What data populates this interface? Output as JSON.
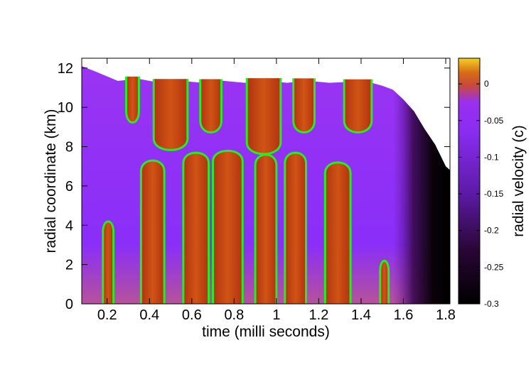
{
  "chart_data": {
    "type": "heatmap",
    "title": "",
    "xlabel": "time   (milli seconds)",
    "ylabel": "radial coordinate   (km)",
    "xlim": [
      0.08,
      1.82
    ],
    "ylim": [
      0,
      12.5
    ],
    "x_ticks": [
      "0.2",
      "0.4",
      "0.6",
      "0.8",
      "1",
      "1.2",
      "1.4",
      "1.6",
      "1.8"
    ],
    "x_tick_values": [
      0.2,
      0.4,
      0.6,
      0.8,
      1.0,
      1.2,
      1.4,
      1.6,
      1.8
    ],
    "y_ticks": [
      "0",
      "2",
      "4",
      "6",
      "8",
      "10",
      "12"
    ],
    "y_tick_values": [
      0,
      2,
      4,
      6,
      8,
      10,
      12
    ],
    "colorbar": {
      "label": "radial velocity   (c)",
      "range": [
        -0.3,
        0.035
      ],
      "ticks": [
        "0",
        "-0.05",
        "-0.1",
        "-0.15",
        "-0.2",
        "-0.25",
        "-0.3"
      ],
      "tick_values": [
        0,
        -0.05,
        -0.1,
        -0.15,
        -0.2,
        -0.25,
        -0.3
      ],
      "palette": [
        "#000000",
        "#3c0a2c",
        "#7a19d6",
        "#8d2bff",
        "#d04a20",
        "#c84d10",
        "#e8b000",
        "#f5d020"
      ]
    },
    "upper_boundary": [
      [
        0.08,
        12.1
      ],
      [
        0.15,
        11.8
      ],
      [
        0.25,
        11.35
      ],
      [
        0.35,
        11.45
      ],
      [
        0.45,
        11.25
      ],
      [
        0.55,
        11.35
      ],
      [
        0.65,
        11.25
      ],
      [
        0.75,
        11.35
      ],
      [
        0.85,
        11.25
      ],
      [
        0.95,
        11.35
      ],
      [
        1.05,
        11.25
      ],
      [
        1.15,
        11.35
      ],
      [
        1.25,
        11.25
      ],
      [
        1.35,
        11.3
      ],
      [
        1.45,
        11.25
      ],
      [
        1.5,
        11.1
      ],
      [
        1.55,
        10.9
      ],
      [
        1.6,
        10.4
      ],
      [
        1.65,
        9.8
      ],
      [
        1.7,
        8.9
      ],
      [
        1.75,
        8.1
      ],
      [
        1.8,
        7.0
      ],
      [
        1.82,
        6.8
      ]
    ],
    "zero_contours": [
      {
        "region": "upper",
        "t_left": 0.29,
        "t_right": 0.35,
        "r_min": 9.1
      },
      {
        "region": "upper",
        "t_left": 0.42,
        "t_right": 0.58,
        "r_min": 7.7
      },
      {
        "region": "upper",
        "t_left": 0.64,
        "t_right": 0.74,
        "r_min": 8.6
      },
      {
        "region": "upper",
        "t_left": 0.86,
        "t_right": 1.02,
        "r_min": 7.5
      },
      {
        "region": "upper",
        "t_left": 1.08,
        "t_right": 1.18,
        "r_min": 8.6
      },
      {
        "region": "upper",
        "t_left": 1.32,
        "t_right": 1.45,
        "r_min": 8.6
      },
      {
        "region": "lower",
        "t_left": 0.18,
        "t_right": 0.23,
        "r_max": 4.3
      },
      {
        "region": "lower",
        "t_left": 0.36,
        "t_right": 0.47,
        "r_max": 7.4
      },
      {
        "region": "lower",
        "t_left": 0.56,
        "t_right": 0.68,
        "r_max": 7.8
      },
      {
        "region": "lower",
        "t_left": 0.7,
        "t_right": 0.84,
        "r_max": 7.9
      },
      {
        "region": "lower",
        "t_left": 0.9,
        "t_right": 1.0,
        "r_max": 7.7
      },
      {
        "region": "lower",
        "t_left": 1.04,
        "t_right": 1.14,
        "r_max": 7.8
      },
      {
        "region": "lower",
        "t_left": 1.23,
        "t_right": 1.35,
        "r_max": 7.3
      },
      {
        "region": "lower",
        "t_left": 1.49,
        "t_right": 1.53,
        "r_max": 2.3
      }
    ],
    "contour_color": "#22ee22",
    "grid": false,
    "legend": "none"
  }
}
